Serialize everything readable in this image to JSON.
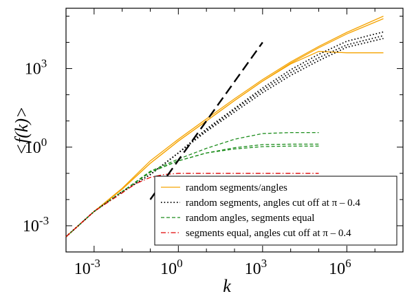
{
  "chart_data": {
    "type": "line",
    "xlabel": "k",
    "ylabel": "<f(k)>",
    "x_scale": "log",
    "y_scale": "log",
    "xlim": [
      0.0001,
      100000000
    ],
    "ylim": [
      0.0001,
      200000
    ],
    "x_ticks": [
      {
        "value": 0.001,
        "base": "10",
        "exp": "-3"
      },
      {
        "value": 1,
        "base": "10",
        "exp": "0"
      },
      {
        "value": 1000,
        "base": "10",
        "exp": "3"
      },
      {
        "value": 1000000,
        "base": "10",
        "exp": "6"
      }
    ],
    "y_ticks": [
      {
        "value": 0.001,
        "base": "10",
        "exp": "-3"
      },
      {
        "value": 1,
        "base": "10",
        "exp": "0"
      },
      {
        "value": 1000,
        "base": "10",
        "exp": "3"
      }
    ],
    "grid": false,
    "legend_position": "bottom-right",
    "legend": [
      {
        "label": "random segments/angles",
        "color": "#f5a300",
        "style": "solid"
      },
      {
        "label": "random segments, angles cut off at π – 0.4",
        "color": "#000000",
        "style": "dotted"
      },
      {
        "label": "random angles, segments equal",
        "color": "#1a8c1a",
        "style": "dashed"
      },
      {
        "label": "segments equal, angles cut off at π – 0.4",
        "color": "#e00000",
        "style": "dashdot"
      }
    ],
    "series": [
      {
        "group": 0,
        "x": [
          0.0001,
          0.001,
          0.01,
          0.1,
          1,
          10,
          100,
          1000,
          10000,
          100000,
          1000000,
          20000000
        ],
        "y": [
          0.00038,
          0.0035,
          0.027,
          0.3,
          2.0,
          12,
          70,
          380,
          1800,
          7000,
          24000,
          100000
        ]
      },
      {
        "group": 0,
        "x": [
          0.0001,
          0.001,
          0.01,
          0.1,
          1,
          10,
          100,
          1000,
          10000,
          100000,
          1000000,
          20000000
        ],
        "y": [
          0.00038,
          0.0035,
          0.025,
          0.24,
          1.7,
          10,
          60,
          330,
          1600,
          6200,
          21000,
          80000
        ]
      },
      {
        "group": 0,
        "x": [
          0.0001,
          0.001,
          0.01,
          0.1,
          1,
          10,
          100,
          1000,
          10000,
          100000,
          1000000,
          20000000
        ],
        "y": [
          0.00038,
          0.0035,
          0.025,
          0.24,
          1.7,
          10,
          60,
          330,
          1500,
          4500,
          4000,
          4000
        ]
      },
      {
        "group": 1,
        "x": [
          0.0001,
          0.001,
          0.01,
          0.1,
          1,
          10,
          100,
          1000,
          10000,
          100000,
          1000000,
          20000000
        ],
        "y": [
          0.00038,
          0.0035,
          0.02,
          0.09,
          0.6,
          5,
          30,
          180,
          900,
          3500,
          11000,
          25000
        ]
      },
      {
        "group": 1,
        "x": [
          0.0001,
          0.001,
          0.01,
          0.1,
          1,
          10,
          100,
          1000,
          10000,
          100000,
          1000000,
          20000000
        ],
        "y": [
          0.00038,
          0.0035,
          0.02,
          0.09,
          0.6,
          4.5,
          27,
          150,
          700,
          2600,
          8000,
          18000
        ]
      },
      {
        "group": 1,
        "x": [
          0.0001,
          0.001,
          0.01,
          0.1,
          1,
          10,
          100,
          1000,
          10000,
          100000,
          1000000,
          20000000
        ],
        "y": [
          0.00038,
          0.0035,
          0.02,
          0.09,
          0.6,
          4,
          22,
          120,
          550,
          2000,
          6500,
          14000
        ]
      },
      {
        "group": 2,
        "x": [
          0.0001,
          0.001,
          0.01,
          0.1,
          1,
          10,
          100,
          1000,
          10000,
          100000
        ],
        "y": [
          0.00038,
          0.0035,
          0.02,
          0.12,
          0.35,
          0.9,
          2.0,
          3.3,
          3.6,
          3.6
        ]
      },
      {
        "group": 2,
        "x": [
          0.0001,
          0.001,
          0.01,
          0.1,
          1,
          10,
          100,
          1000,
          10000,
          100000
        ],
        "y": [
          0.00038,
          0.0035,
          0.02,
          0.11,
          0.3,
          0.6,
          0.95,
          1.25,
          1.3,
          1.3
        ]
      },
      {
        "group": 2,
        "x": [
          0.0001,
          0.001,
          0.01,
          0.1,
          1,
          10,
          100,
          1000,
          10000,
          100000
        ],
        "y": [
          0.00038,
          0.0035,
          0.02,
          0.11,
          0.3,
          0.6,
          0.85,
          1.05,
          1.1,
          1.1
        ]
      },
      {
        "group": 3,
        "x": [
          0.0001,
          0.001,
          0.01,
          0.03,
          0.1,
          0.3,
          1,
          10,
          100,
          1000,
          10000,
          100000
        ],
        "y": [
          0.00038,
          0.0035,
          0.018,
          0.04,
          0.07,
          0.09,
          0.1,
          0.1,
          0.1,
          0.1,
          0.1,
          0.1
        ]
      }
    ],
    "reference_line": {
      "color": "#000000",
      "style": "long-dash",
      "x": [
        0.1,
        1000
      ],
      "y": [
        0.01,
        10000
      ]
    }
  }
}
